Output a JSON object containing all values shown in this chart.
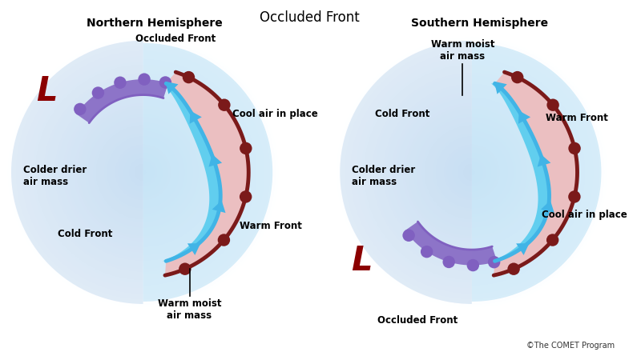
{
  "title": "Occluded Front",
  "title_fontsize": 12,
  "bg_color": "#ffffff",
  "nh_label": "Northern Hemisphere",
  "sh_label": "Southern Hemisphere",
  "cold_front_color": "#41b4e6",
  "warm_front_color": "#7b1a1a",
  "occluded_color": "#8060c0",
  "warm_air_color": "#f0b0b0",
  "cool_air_color": "#a8d8f0",
  "cold_air_color": "#b0c8e0",
  "label_fontsize": 8.5,
  "L_fontsize": 30,
  "L_color": "#8b0000",
  "copyright": "©The COMET Program"
}
